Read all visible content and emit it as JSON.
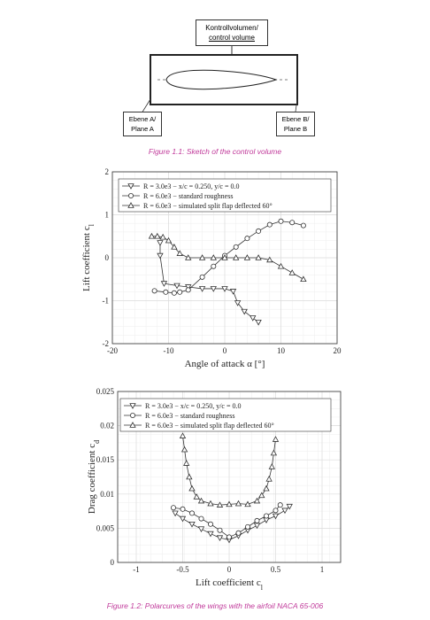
{
  "figure1": {
    "control_volume_label_line1": "Kontrollvolumen/",
    "control_volume_label_line2": "control volume",
    "plane_a_line1": "Ebene A/",
    "plane_a_line2": "Plane A",
    "plane_b_line1": "Ebene B/",
    "plane_b_line2": "Plane B",
    "caption": "Figure 1.1: Sketch of the control volume"
  },
  "figure2_caption": "Figure 1.2: Polarcurves of the wings with the airfoil NACA 65-006",
  "colors": {
    "caption": "#c0399a",
    "line": "#333333",
    "grid": "#e6e6e6"
  },
  "chart_data": [
    {
      "type": "line",
      "title": "",
      "xlabel": "Angle of attack α [°]",
      "ylabel": "Lift coefficient c",
      "ylabel_subscript": "l",
      "xlim": [
        -20,
        20
      ],
      "ylim": [
        -2,
        2
      ],
      "xticks": [
        "-20",
        "-10",
        "0",
        "10",
        "20"
      ],
      "yticks": [
        "-2",
        "-1",
        "0",
        "1",
        "2"
      ],
      "grid": true,
      "legend_position": "top-left",
      "series": [
        {
          "name": "R = 3.0e3 − x/c = 0.250, y/c = 0.0",
          "marker": "triangle-down",
          "x": [
            -11.5,
            -11.5,
            -10.8,
            -8.5,
            -6.5,
            -4,
            -2,
            0,
            1.5,
            2.3,
            3.5,
            5,
            6
          ],
          "y": [
            0.35,
            0.05,
            -0.6,
            -0.65,
            -0.68,
            -0.72,
            -0.72,
            -0.72,
            -0.78,
            -1.05,
            -1.25,
            -1.4,
            -1.5
          ]
        },
        {
          "name": "R = 6.0e3 − standard roughness",
          "marker": "circle",
          "x": [
            -12.5,
            -10.5,
            -9,
            -8,
            -6.5,
            -4,
            -2,
            0,
            2,
            4,
            6,
            8,
            10,
            12,
            14
          ],
          "y": [
            -0.77,
            -0.8,
            -0.82,
            -0.8,
            -0.75,
            -0.45,
            -0.2,
            0.05,
            0.25,
            0.45,
            0.62,
            0.77,
            0.85,
            0.82,
            0.75
          ]
        },
        {
          "name": "R = 6.0e3 − simulated split flap deflected 60°",
          "marker": "triangle-up",
          "x": [
            -13,
            -12,
            -11,
            -10,
            -9,
            -8,
            -6.5,
            -4,
            -2,
            0,
            2,
            4,
            6,
            8,
            10,
            12,
            14
          ],
          "y": [
            0.5,
            0.5,
            0.48,
            0.4,
            0.25,
            0.1,
            0,
            0,
            0,
            0,
            0,
            0,
            0,
            -0.05,
            -0.2,
            -0.35,
            -0.5
          ]
        }
      ]
    },
    {
      "type": "line",
      "title": "",
      "xlabel": "Lift coefficient c",
      "xlabel_subscript": "l",
      "ylabel": "Drag coefficient c",
      "ylabel_subscript": "d",
      "xlim": [
        -1.2,
        1.2
      ],
      "ylim": [
        0,
        0.025
      ],
      "xticks": [
        "-1",
        "-0.5",
        "0",
        "0.5",
        "1"
      ],
      "yticks": [
        "0",
        "0.005",
        "0.01",
        "0.015",
        "0.02",
        "0.025"
      ],
      "grid": true,
      "legend_position": "top-left",
      "series": [
        {
          "name": "R = 3.0e3 − x/c = 0.250, y/c = 0.0",
          "marker": "triangle-down",
          "x": [
            -0.58,
            -0.5,
            -0.4,
            -0.3,
            -0.2,
            -0.1,
            0,
            0.1,
            0.2,
            0.3,
            0.4,
            0.5,
            0.6,
            0.65
          ],
          "y": [
            0.0072,
            0.0064,
            0.0056,
            0.0049,
            0.0042,
            0.0036,
            0.0033,
            0.0039,
            0.0047,
            0.0054,
            0.0062,
            0.0068,
            0.0076,
            0.0082
          ]
        },
        {
          "name": "R = 6.0e3 − standard roughness",
          "marker": "circle",
          "x": [
            -0.6,
            -0.5,
            -0.4,
            -0.3,
            -0.2,
            -0.1,
            0,
            0.1,
            0.2,
            0.3,
            0.4,
            0.5,
            0.55
          ],
          "y": [
            0.008,
            0.0078,
            0.0072,
            0.0064,
            0.0056,
            0.0047,
            0.0037,
            0.0043,
            0.0052,
            0.0061,
            0.0068,
            0.0076,
            0.0084
          ]
        },
        {
          "name": "R = 6.0e3 − simulated split flap deflected 60°",
          "marker": "triangle-up",
          "x": [
            -0.5,
            -0.48,
            -0.46,
            -0.43,
            -0.4,
            -0.35,
            -0.3,
            -0.2,
            -0.1,
            0,
            0.1,
            0.2,
            0.3,
            0.35,
            0.4,
            0.43,
            0.46,
            0.48,
            0.5
          ],
          "y": [
            0.0185,
            0.0165,
            0.0145,
            0.0125,
            0.0108,
            0.0096,
            0.009,
            0.0086,
            0.0084,
            0.0085,
            0.0086,
            0.0085,
            0.009,
            0.0098,
            0.0108,
            0.0122,
            0.014,
            0.016,
            0.018
          ]
        }
      ]
    }
  ]
}
